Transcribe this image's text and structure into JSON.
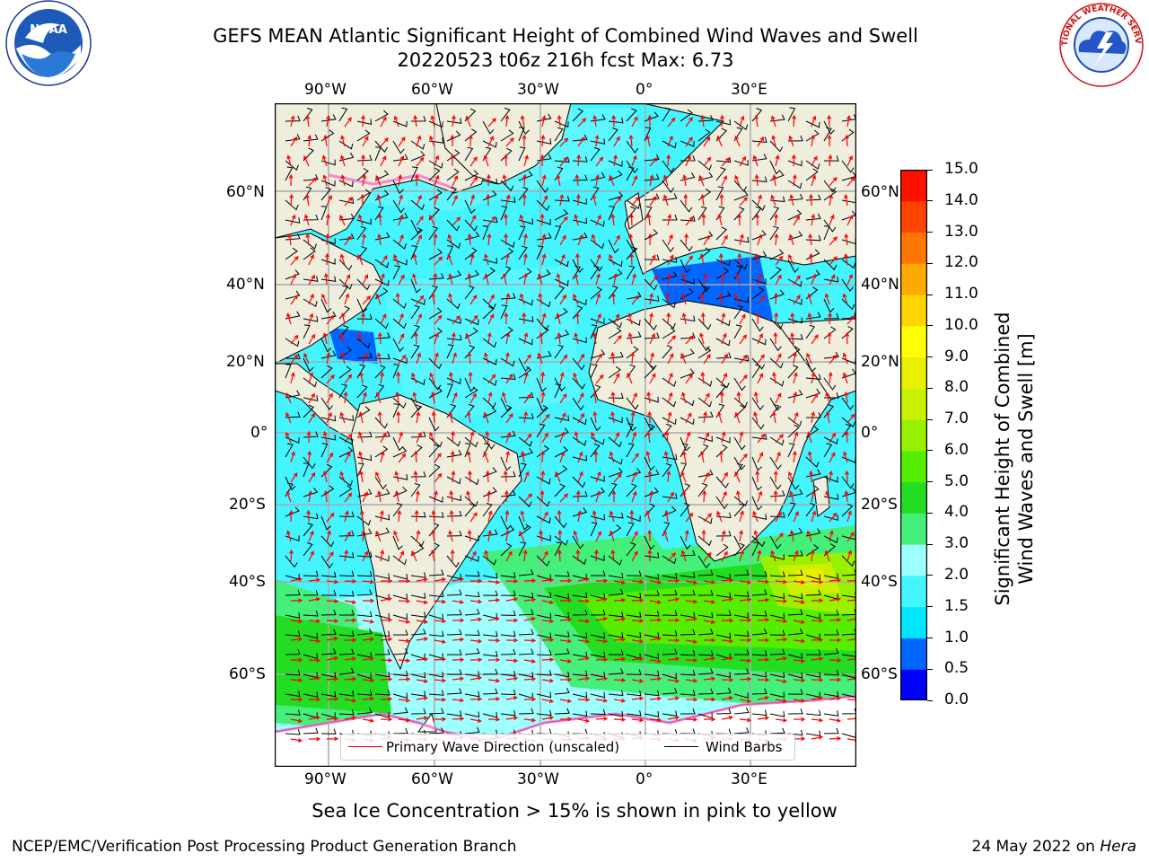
{
  "title": {
    "line1": "GEFS MEAN Atlantic Significant Height of Combined Wind Waves and Swell",
    "line2": "20220523 t06z 216h fcst   Max: 6.73"
  },
  "axes": {
    "lon_labels": [
      "90°W",
      "60°W",
      "30°W",
      "0°",
      "30°E"
    ],
    "lat_labels_left": [
      "60°N",
      "40°N",
      "20°N",
      "0°",
      "20°S",
      "40°S",
      "60°S"
    ],
    "lat_labels_right": [
      "60°N",
      "40°N",
      "20°N",
      "0°",
      "20°S",
      "40°S",
      "60°S"
    ]
  },
  "colorbar": {
    "title_line1": "Significant Height of Combined",
    "title_line2": "Wind Waves and Swell [m]",
    "levels": [
      "0.0",
      "0.5",
      "1.0",
      "1.5",
      "2.0",
      "3.0",
      "4.0",
      "5.0",
      "6.0",
      "7.0",
      "8.0",
      "9.0",
      "10.0",
      "11.0",
      "12.0",
      "13.0",
      "14.0",
      "15.0"
    ],
    "colors": [
      "#0000ff",
      "#0066ff",
      "#00e6ff",
      "#44f4ff",
      "#9effff",
      "#44f07a",
      "#22dd22",
      "#55ee00",
      "#99f000",
      "#c8f000",
      "#e8f000",
      "#ffff00",
      "#ffd400",
      "#ffaa00",
      "#ff7700",
      "#ff4400",
      "#ff1100"
    ]
  },
  "legend": {
    "wave_direction": "Primary Wave Direction (unscaled)",
    "wind_barbs": "Wind Barbs",
    "wave_color": "#ff0000",
    "barb_color": "#000000"
  },
  "footer": {
    "sea_ice_note": "Sea Ice Concentration > 15% is shown in pink to yellow",
    "org": "NCEP/EMC/Verification Post Processing Product Generation Branch",
    "date": "24 May 2022 on",
    "host": "Hera"
  },
  "logos": {
    "left": "noaa-logo",
    "right_text": "NATIONAL WEATHER SERVICE",
    "right": "nws-logo"
  },
  "colors": {
    "land": "#efeddc",
    "ocean_base": "#44f4ff"
  }
}
